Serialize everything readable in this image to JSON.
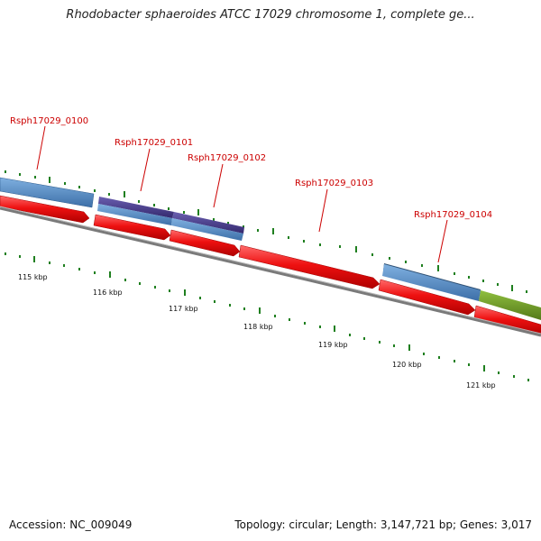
{
  "title": "Rhodobacter sphaeroides ATCC 17029 chromosome 1, complete ge...",
  "footer": {
    "accession": "Accession: NC_009049",
    "summary": "Topology: circular; Length: 3,147,721 bp; Genes: 3,017"
  },
  "colors": {
    "cds": "#ee1111",
    "gene_blue": "#4f86c0",
    "gene_purple": "#4b3f8c",
    "gene_green": "#6f9a2a",
    "backbone": "#777777",
    "tick": "#1f7f1f",
    "label": "#cc0000"
  },
  "gene_labels": [
    "Rsph17029_0100",
    "Rsph17029_0101",
    "Rsph17029_0102",
    "Rsph17029_0103",
    "Rsph17029_0104"
  ],
  "kbp_ticks": [
    "115 kbp",
    "116 kbp",
    "117 kbp",
    "118 kbp",
    "119 kbp",
    "120 kbp",
    "121 kbp"
  ]
}
